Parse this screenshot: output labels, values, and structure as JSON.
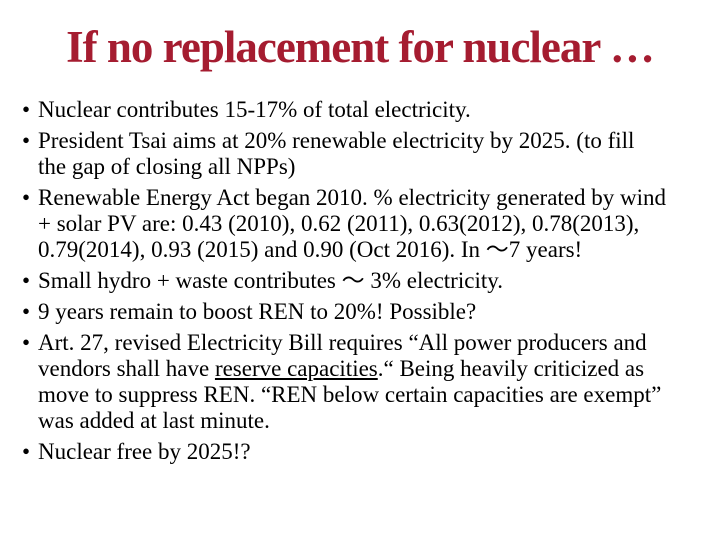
{
  "slide": {
    "title": "If no replacement for nuclear …",
    "bullet_char": "•",
    "colors": {
      "title": "#A51C30",
      "body_text": "#000000",
      "background": "#FFFFFF"
    },
    "bullets": [
      {
        "segments": [
          {
            "text": "Nuclear contributes 15-17% of total electricity."
          }
        ]
      },
      {
        "segments": [
          {
            "text": "President Tsai aims at 20% renewable electricity by 2025. (to fill\nthe gap of closing all NPPs)"
          }
        ]
      },
      {
        "segments": [
          {
            "text": "Renewable Energy Act began 2010. % electricity generated by wind\n+ solar PV are: 0.43 (2010), 0.62 (2011), 0.63(2012), 0.78(2013),\n0.79(2014), 0.93 (2015) and 0.90 (Oct 2016). In ～7 years!"
          }
        ]
      },
      {
        "segments": [
          {
            "text": "Small hydro + waste contributes ～ 3% electricity."
          }
        ]
      },
      {
        "segments": [
          {
            "text": "9 years remain to boost REN to 20%! Possible?"
          }
        ]
      },
      {
        "segments": [
          {
            "text": "Art. 27, revised Electricity Bill requires “All power producers and\nvendors shall have "
          },
          {
            "text": "reserve capacities",
            "underline": true
          },
          {
            "text": ".“ Being heavily criticized as\nmove to suppress REN. “REN below certain capacities are exempt”\nwas added at last minute."
          }
        ]
      },
      {
        "segments": [
          {
            "text": "Nuclear free by 2025!?"
          }
        ]
      }
    ]
  }
}
